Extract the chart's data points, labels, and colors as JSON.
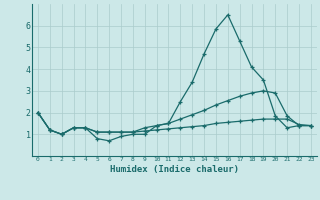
{
  "xlabel": "Humidex (Indice chaleur)",
  "xlim": [
    -0.5,
    23.5
  ],
  "ylim": [
    0,
    7
  ],
  "bg_color": "#cce8e8",
  "grid_color": "#aacccc",
  "line_color": "#1a6b6b",
  "xtick_labels": [
    "0",
    "1",
    "2",
    "3",
    "4",
    "5",
    "6",
    "7",
    "8",
    "9",
    "10",
    "11",
    "12",
    "13",
    "14",
    "15",
    "16",
    "17",
    "18",
    "19",
    "20",
    "21",
    "22",
    "23"
  ],
  "yticks": [
    1,
    2,
    3,
    4,
    5,
    6
  ],
  "series": [
    [
      2.0,
      1.2,
      1.0,
      1.3,
      1.3,
      0.8,
      0.7,
      0.9,
      1.0,
      1.0,
      1.4,
      1.5,
      2.5,
      3.4,
      4.7,
      5.85,
      6.5,
      5.3,
      4.1,
      3.5,
      1.85,
      1.3,
      1.4,
      1.4
    ],
    [
      2.0,
      1.2,
      1.0,
      1.3,
      1.3,
      1.1,
      1.1,
      1.1,
      1.1,
      1.3,
      1.4,
      1.5,
      1.7,
      1.9,
      2.1,
      2.35,
      2.55,
      2.75,
      2.9,
      3.0,
      2.9,
      1.85,
      1.4,
      1.4
    ],
    [
      2.0,
      1.2,
      1.0,
      1.3,
      1.3,
      1.1,
      1.1,
      1.1,
      1.1,
      1.15,
      1.2,
      1.25,
      1.3,
      1.35,
      1.4,
      1.5,
      1.55,
      1.6,
      1.65,
      1.7,
      1.7,
      1.7,
      1.45,
      1.4
    ]
  ]
}
